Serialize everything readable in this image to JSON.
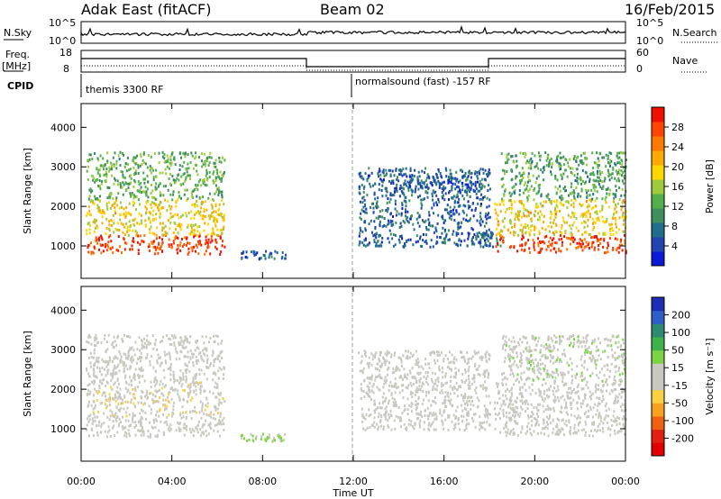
{
  "header": {
    "title": "Adak East (fitACF)",
    "beam": "Beam 02",
    "date": "16/Feb/2015"
  },
  "noise_panel": {
    "left_label": "N.Sky",
    "right_label": "N.Search",
    "left_ticks": [
      "10^5",
      "10^0"
    ],
    "right_ticks": [
      "10^5",
      "10^0"
    ]
  },
  "freq_panel": {
    "left_label_1": "Freq.",
    "left_label_2": "[MHz]",
    "left_ticks": [
      "18",
      "8"
    ],
    "right_label": "Nave",
    "right_ticks": [
      "60",
      "0"
    ],
    "cpid_label": "CPID"
  },
  "cpid_segments": [
    {
      "name": "themis 3300 RF",
      "start_hour": 0
    },
    {
      "name": "normalsound (fast) -157 RF",
      "start_hour": 12
    }
  ],
  "axes": {
    "ylabel": "Slant Range [km]",
    "xlabel": "Time UT",
    "x_ticks": [
      "00:00",
      "04:00",
      "08:00",
      "12:00",
      "16:00",
      "20:00",
      "00:00"
    ],
    "y_ticks": [
      "1000",
      "2000",
      "3000",
      "4000"
    ]
  },
  "power_scale": {
    "label": "Power [dB]",
    "ticks": [
      "4",
      "8",
      "12",
      "16",
      "20",
      "24",
      "28"
    ],
    "colors": [
      "#0a1ad8",
      "#2045b0",
      "#1f6e8c",
      "#3f8f5e",
      "#52b04a",
      "#9ccc3a",
      "#ffd700",
      "#ffaa00",
      "#ff7800",
      "#ff4500",
      "#ee1100"
    ]
  },
  "velocity_scale": {
    "label": "Velocity [m s⁻¹]",
    "ticks": [
      "200",
      "100",
      "50",
      "15",
      "-15",
      "-50",
      "-100",
      "-200"
    ],
    "colors": [
      "#1a2fb4",
      "#2e5fc8",
      "#2e8a70",
      "#3fb24a",
      "#7bd444",
      "#c8c8c0",
      "#c8c8c0",
      "#f8d040",
      "#f8a020",
      "#f06010",
      "#e02010",
      "#e00000"
    ]
  },
  "chart_data": [
    {
      "type": "heatmap",
      "title": "Power [dB]",
      "xlabel": "Time UT",
      "ylabel": "Slant Range [km]",
      "xlim": [
        0,
        24
      ],
      "ylim": [
        180,
        4600
      ],
      "clim": [
        0,
        30
      ],
      "regions": [
        {
          "t0": 0.2,
          "t1": 6.3,
          "r0": 820,
          "r1": 1300,
          "value": 27
        },
        {
          "t0": 0.2,
          "t1": 6.3,
          "r0": 1300,
          "r1": 2200,
          "value": 18
        },
        {
          "t0": 0.2,
          "t1": 6.3,
          "r0": 2200,
          "r1": 3400,
          "value": 12
        },
        {
          "t0": 7.0,
          "t1": 9.0,
          "r0": 700,
          "r1": 900,
          "value": 6
        },
        {
          "t0": 12.2,
          "t1": 18.0,
          "r0": 1000,
          "r1": 3000,
          "value": 6
        },
        {
          "t0": 14.0,
          "t1": 17.5,
          "r0": 2400,
          "r1": 2800,
          "value": 5
        },
        {
          "t0": 17.5,
          "t1": 18.5,
          "r0": 1000,
          "r1": 1400,
          "value": 6
        },
        {
          "t0": 18.2,
          "t1": 24.0,
          "r0": 850,
          "r1": 1300,
          "value": 26
        },
        {
          "t0": 18.2,
          "t1": 24.0,
          "r0": 1300,
          "r1": 2200,
          "value": 18
        },
        {
          "t0": 18.5,
          "t1": 24.0,
          "r0": 2200,
          "r1": 3400,
          "value": 11
        }
      ]
    },
    {
      "type": "heatmap",
      "title": "Velocity [m s⁻¹]",
      "xlabel": "Time UT",
      "ylabel": "Slant Range [km]",
      "xlim": [
        0,
        24
      ],
      "ylim": [
        180,
        4600
      ],
      "clim": [
        -200,
        200
      ],
      "regions": [
        {
          "t0": 0.2,
          "t1": 6.3,
          "r0": 820,
          "r1": 1300,
          "value": 0
        },
        {
          "t0": 0.2,
          "t1": 6.3,
          "r0": 1300,
          "r1": 2200,
          "value": -20
        },
        {
          "t0": 0.2,
          "t1": 6.3,
          "r0": 2200,
          "r1": 3400,
          "value": 10
        },
        {
          "t0": 7.0,
          "t1": 9.0,
          "r0": 700,
          "r1": 900,
          "value": 40
        },
        {
          "t0": 12.2,
          "t1": 18.0,
          "r0": 1000,
          "r1": 3000,
          "value": -10
        },
        {
          "t0": 18.2,
          "t1": 24.0,
          "r0": 850,
          "r1": 2200,
          "value": 0
        },
        {
          "t0": 18.5,
          "t1": 24.0,
          "r0": 2200,
          "r1": 3400,
          "value": 20
        }
      ]
    }
  ]
}
